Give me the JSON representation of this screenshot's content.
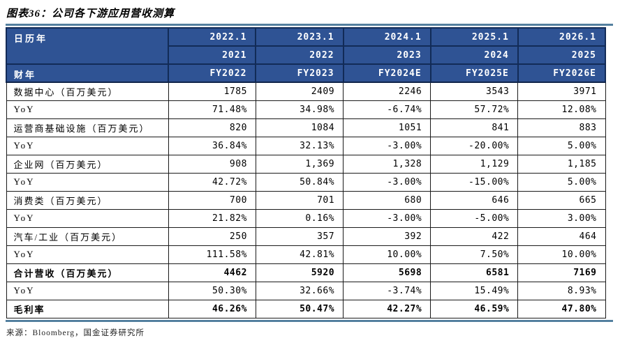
{
  "meta": {
    "title": "图表36：公司各下游应用营收测算",
    "source": "来源：Bloomberg，国金证券研究所"
  },
  "colors": {
    "header_bg": "#2f5394",
    "header_border": "#122b57",
    "rule": "#54809f"
  },
  "chart_data": {
    "type": "table",
    "title": "公司各下游应用营收测算",
    "calendar_year_label": "日历年",
    "fiscal_year_label": "财年",
    "calendar_months": [
      "2022.1",
      "2023.1",
      "2024.1",
      "2025.1",
      "2026.1"
    ],
    "calendar_years": [
      "2021",
      "2022",
      "2023",
      "2024",
      "2025"
    ],
    "fiscal_years": [
      "FY2022",
      "FY2023",
      "FY2024E",
      "FY2025E",
      "FY2026E"
    ],
    "rows": [
      {
        "label": "数据中心（百万美元）",
        "values": [
          "1785",
          "2409",
          "2246",
          "3543",
          "3971"
        ],
        "bold": false
      },
      {
        "label": "YoY",
        "values": [
          "71.48%",
          "34.98%",
          "-6.74%",
          "57.72%",
          "12.08%"
        ],
        "bold": false
      },
      {
        "label": "运营商基础设施（百万美元）",
        "values": [
          "820",
          "1084",
          "1051",
          "841",
          "883"
        ],
        "bold": false
      },
      {
        "label": "YoY",
        "values": [
          "36.84%",
          "32.13%",
          "-3.00%",
          "-20.00%",
          "5.00%"
        ],
        "bold": false
      },
      {
        "label": "企业网（百万美元）",
        "values": [
          "908",
          "1,369",
          "1,328",
          "1,129",
          "1,185"
        ],
        "bold": false
      },
      {
        "label": "YoY",
        "values": [
          "42.72%",
          "50.84%",
          "-3.00%",
          "-15.00%",
          "5.00%"
        ],
        "bold": false
      },
      {
        "label": "消费类（百万美元）",
        "values": [
          "700",
          "701",
          "680",
          "646",
          "665"
        ],
        "bold": false
      },
      {
        "label": "YoY",
        "values": [
          "21.82%",
          "0.16%",
          "-3.00%",
          "-5.00%",
          "3.00%"
        ],
        "bold": false
      },
      {
        "label": "汽车/工业（百万美元）",
        "values": [
          "250",
          "357",
          "392",
          "422",
          "464"
        ],
        "bold": false
      },
      {
        "label": "YoY",
        "values": [
          "111.58%",
          "42.81%",
          "10.00%",
          "7.50%",
          "10.00%"
        ],
        "bold": false
      },
      {
        "label": "合计营收（百万美元）",
        "values": [
          "4462",
          "5920",
          "5698",
          "6581",
          "7169"
        ],
        "bold": true
      },
      {
        "label": "YoY",
        "values": [
          "50.30%",
          "32.66%",
          "-3.74%",
          "15.49%",
          "8.93%"
        ],
        "bold": false
      },
      {
        "label": "毛利率",
        "values": [
          "46.26%",
          "50.47%",
          "42.27%",
          "46.59%",
          "47.80%"
        ],
        "bold": true
      }
    ]
  }
}
